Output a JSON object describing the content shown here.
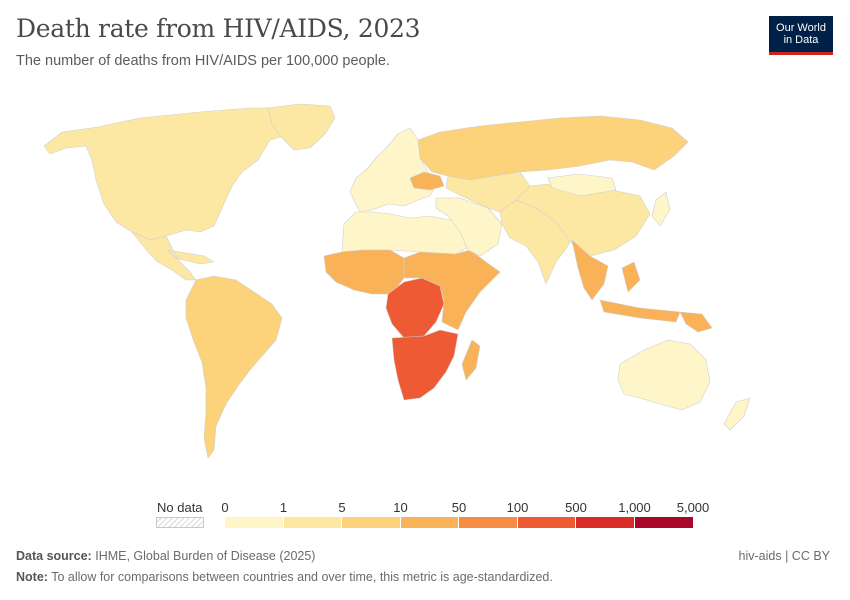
{
  "header": {
    "title": "Death rate from HIV/AIDS, 2023",
    "subtitle": "The number of deaths from HIV/AIDS per 100,000 people."
  },
  "logo": {
    "line1": "Our World",
    "line2": "in Data"
  },
  "legend": {
    "no_data_label": "No data",
    "ticks": [
      "0",
      "1",
      "5",
      "10",
      "50",
      "100",
      "500",
      "1,000",
      "5,000"
    ],
    "bins": [
      {
        "from": "0",
        "to": "1",
        "color": "#fef6c9"
      },
      {
        "from": "1",
        "to": "5",
        "color": "#fde8a3"
      },
      {
        "from": "5",
        "to": "10",
        "color": "#fcd27b"
      },
      {
        "from": "10",
        "to": "50",
        "color": "#f9b258"
      },
      {
        "from": "50",
        "to": "100",
        "color": "#f68b43"
      },
      {
        "from": "100",
        "to": "500",
        "color": "#ee5a33"
      },
      {
        "from": "500",
        "to": "1,000",
        "color": "#d82c26"
      },
      {
        "from": "1,000",
        "to": "5,000",
        "color": "#a8072a"
      }
    ]
  },
  "regions": [
    {
      "name": "North America",
      "level": 1
    },
    {
      "name": "Greenland",
      "level": 1
    },
    {
      "name": "Central America",
      "level": 1
    },
    {
      "name": "South America",
      "level": 2
    },
    {
      "name": "Europe",
      "level": 0
    },
    {
      "name": "Russia",
      "level": 2
    },
    {
      "name": "Ukraine",
      "level": 3
    },
    {
      "name": "North Africa",
      "level": 0
    },
    {
      "name": "West Africa",
      "level": 3
    },
    {
      "name": "Central Africa",
      "level": 5
    },
    {
      "name": "East Africa",
      "level": 3
    },
    {
      "name": "Southern Africa",
      "level": 5
    },
    {
      "name": "Madagascar",
      "level": 3
    },
    {
      "name": "Middle East",
      "level": 0
    },
    {
      "name": "Central Asia",
      "level": 1
    },
    {
      "name": "South Asia",
      "level": 1
    },
    {
      "name": "China",
      "level": 1
    },
    {
      "name": "Mongolia",
      "level": 0
    },
    {
      "name": "Southeast Asia",
      "level": 3
    },
    {
      "name": "Papua New Guinea",
      "level": 3
    },
    {
      "name": "Japan",
      "level": 0
    },
    {
      "name": "Australia",
      "level": 0
    },
    {
      "name": "New Zealand",
      "level": 0
    }
  ],
  "footer": {
    "source_label": "Data source:",
    "source_text": "IHME, Global Burden of Disease (2025)",
    "note_label": "Note:",
    "note_text": "To allow for comparisons between countries and over time, this metric is age-standardized.",
    "credit": "hiv-aids | CC BY"
  }
}
